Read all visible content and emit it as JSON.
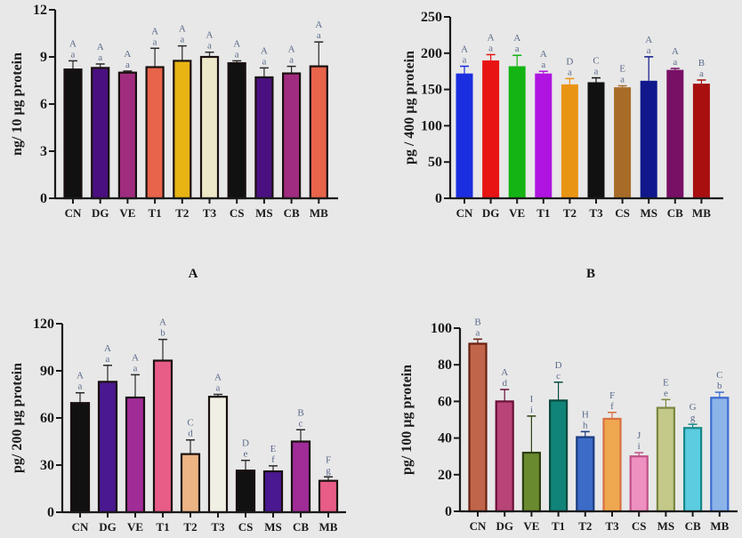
{
  "panel_labels": [
    "A",
    "B"
  ],
  "chart_data": [
    {
      "id": "A",
      "type": "bar",
      "title": "",
      "xlabel": "",
      "ylabel": "ng/ 10 µg protein",
      "ylim": [
        0,
        12
      ],
      "yticks": [
        0,
        3,
        6,
        9,
        12
      ],
      "grid": false,
      "bar_outline": true,
      "categories": [
        "CN",
        "DG",
        "VE",
        "T1",
        "T2",
        "T3",
        "CS",
        "MS",
        "CB",
        "MB"
      ],
      "values": [
        8.2,
        8.3,
        8.0,
        8.35,
        8.75,
        9.0,
        8.6,
        7.7,
        7.95,
        8.4
      ],
      "errors": [
        0.55,
        0.25,
        0.1,
        1.2,
        0.95,
        0.3,
        0.15,
        0.6,
        0.45,
        1.55
      ],
      "colors": [
        "#111111",
        "#4a1080",
        "#a02c80",
        "#e8644a",
        "#e8b414",
        "#ece8c8",
        "#111111",
        "#4a1080",
        "#a02c80",
        "#e8644a"
      ],
      "sig_upper": [
        "A",
        "A",
        "A",
        "A",
        "A",
        "A",
        "A",
        "A",
        "A",
        "A"
      ],
      "sig_lower": [
        "a",
        "a",
        "a",
        "a",
        "a",
        "a",
        "a",
        "a",
        "a",
        "a"
      ]
    },
    {
      "id": "B",
      "type": "bar",
      "title": "",
      "xlabel": "",
      "ylabel": "pg / 400 µg protein",
      "ylim": [
        0,
        250
      ],
      "yticks": [
        0,
        50,
        100,
        150,
        200,
        250
      ],
      "grid": false,
      "bar_outline": false,
      "categories": [
        "CN",
        "DG",
        "VE",
        "T1",
        "T2",
        "T3",
        "CS",
        "MS",
        "CB",
        "MB"
      ],
      "values": [
        172,
        190,
        182,
        172,
        157,
        160,
        153,
        162,
        177,
        158
      ],
      "errors": [
        10,
        8,
        15,
        3,
        8,
        6,
        2,
        33,
        2,
        5
      ],
      "colors": [
        "#1a2ee0",
        "#e81414",
        "#14b414",
        "#b014e0",
        "#ea9414",
        "#111111",
        "#a86c28",
        "#10188c",
        "#781066",
        "#a81010"
      ],
      "sig_upper": [
        "A",
        "A",
        "A",
        "A",
        "D",
        "C",
        "E",
        "A",
        "A",
        "B"
      ],
      "sig_lower": [
        "a",
        "a",
        "a",
        "a",
        "a",
        "a",
        "a",
        "a",
        "a",
        "a"
      ]
    },
    {
      "id": "C",
      "type": "bar",
      "title": "",
      "xlabel": "",
      "ylabel": "pg/ 200 µg protein",
      "ylim": [
        0,
        120
      ],
      "yticks": [
        0,
        30,
        60,
        90,
        120
      ],
      "grid": false,
      "bar_outline": true,
      "categories": [
        "CN",
        "DG",
        "VE",
        "T1",
        "T2",
        "T3",
        "CS",
        "MS",
        "CB",
        "MB"
      ],
      "values": [
        69.5,
        83,
        73,
        96.5,
        37,
        73.5,
        26.5,
        26,
        45,
        20
      ],
      "errors": [
        6.5,
        10.5,
        14.5,
        13.5,
        9,
        1.5,
        6.5,
        3.5,
        7.5,
        2.5
      ],
      "colors": [
        "#111111",
        "#4a1890",
        "#a02c98",
        "#e85c88",
        "#ecb484",
        "#f0f0e4",
        "#111111",
        "#4a1890",
        "#a02c98",
        "#e85c88"
      ],
      "sig_upper": [
        "A",
        "A",
        "A",
        "A",
        "C",
        "A",
        "D",
        "E",
        "B",
        "F"
      ],
      "sig_lower": [
        "a",
        "a",
        "a",
        "b",
        "d",
        "a",
        "e",
        "f",
        "c",
        "g"
      ]
    },
    {
      "id": "D",
      "type": "bar",
      "title": "",
      "xlabel": "",
      "ylabel": "pg/ 100 µg protein",
      "ylim": [
        0,
        100
      ],
      "yticks": [
        0,
        20,
        40,
        60,
        80,
        100
      ],
      "grid": false,
      "bar_outline": true,
      "categories": [
        "CN",
        "DG",
        "VE",
        "T1",
        "T2",
        "T3",
        "CS",
        "MS",
        "CB",
        "MB"
      ],
      "values": [
        91.5,
        60,
        32,
        60.5,
        40.5,
        50.5,
        30,
        56.5,
        45.5,
        62
      ],
      "errors": [
        2.5,
        6.5,
        20,
        10,
        3,
        3.5,
        2,
        4.5,
        2,
        3
      ],
      "colors": [
        "#c0654a",
        "#b84478",
        "#6a8a30",
        "#108478",
        "#3c6cc8",
        "#f0a850",
        "#ee90c0",
        "#c4c888",
        "#5ccce0",
        "#8cb4e8"
      ],
      "edge_colors": [
        "#6a2010",
        "#6a1038",
        "#2c4010",
        "#0a4a40",
        "#1c3c80",
        "#d87040",
        "#c05088",
        "#7a8840",
        "#148888",
        "#3c6cd0"
      ],
      "sig_upper": [
        "B",
        "A",
        "I",
        "D",
        "H",
        "F",
        "J",
        "E",
        "G",
        "C"
      ],
      "sig_lower": [
        "a",
        "d",
        "i",
        "c",
        "h",
        "f",
        "i",
        "e",
        "g",
        "b"
      ]
    }
  ]
}
